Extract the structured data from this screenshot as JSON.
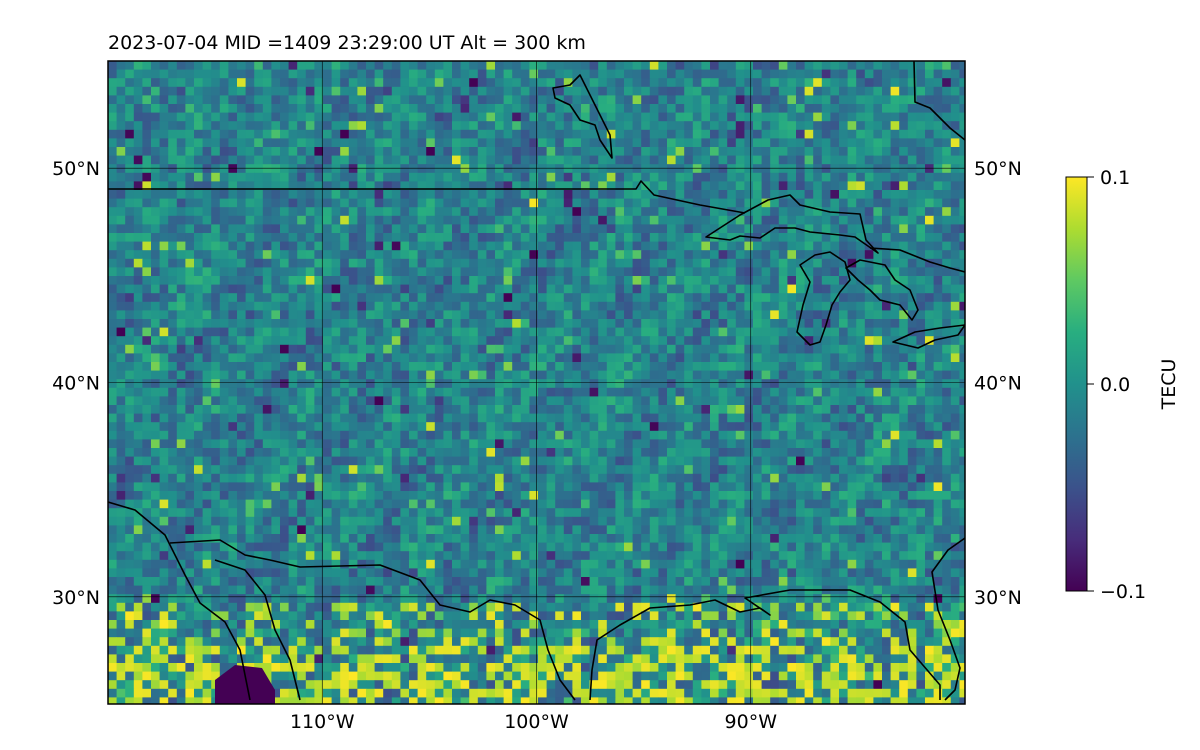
{
  "title": "2023-07-04  MID =1409    23:29:00  UT  Alt = 300 km",
  "map": {
    "lon_range": [
      -120,
      -80
    ],
    "lat_range": [
      25,
      55
    ],
    "gridlines": true,
    "x_ticks": [
      {
        "lon": -110,
        "label": "110°W"
      },
      {
        "lon": -100,
        "label": "100°W"
      },
      {
        "lon": -90,
        "label": "90°W"
      }
    ],
    "y_ticks": [
      {
        "lat": 50,
        "label": "50°N"
      },
      {
        "lat": 40,
        "label": "40°N"
      },
      {
        "lat": 30,
        "label": "30°N"
      }
    ]
  },
  "colorbar": {
    "label": "TECU",
    "colormap": "viridis",
    "range": [
      -0.1,
      0.1
    ],
    "ticks": [
      {
        "value": 0.1,
        "label": "0.1"
      },
      {
        "value": 0.0,
        "label": "0.0"
      },
      {
        "value": -0.1,
        "label": "−0.1"
      }
    ]
  },
  "colors": {
    "viridis_low": "#440154",
    "viridis_mid": "#21918c",
    "viridis_high": "#fde725",
    "coastline": "#000000",
    "gridline": "#000000"
  }
}
